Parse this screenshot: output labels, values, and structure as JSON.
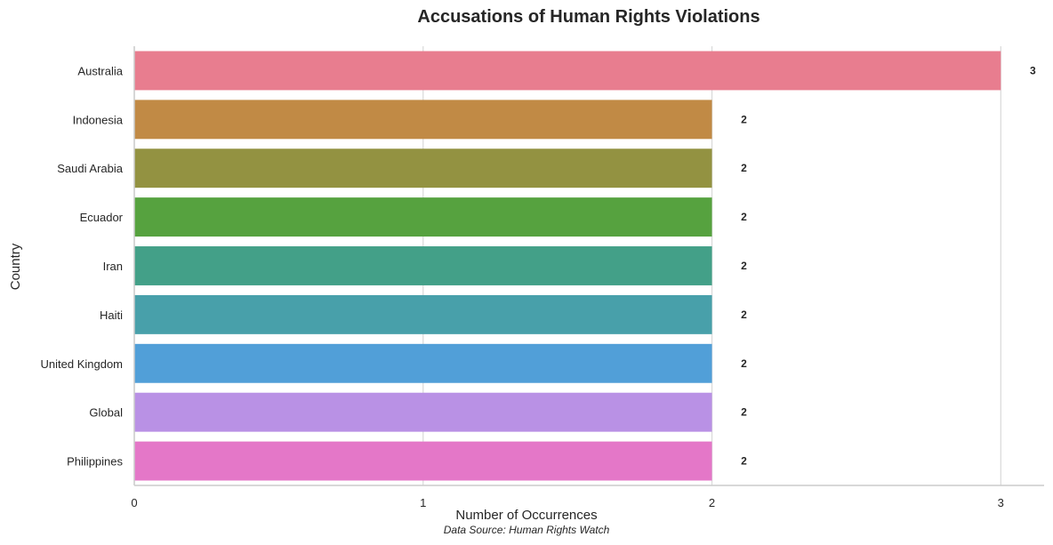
{
  "chart_data": {
    "type": "bar",
    "orientation": "horizontal",
    "title": "Accusations of Human Rights Violations",
    "xlabel": "Number of Occurrences",
    "ylabel": "Country",
    "source_note": "Data Source: Human Rights Watch",
    "xlim": [
      0,
      3.15
    ],
    "xticks": [
      0,
      1,
      2,
      3
    ],
    "grid": "vertical",
    "categories": [
      "Australia",
      "Indonesia",
      "Saudi Arabia",
      "Ecuador",
      "Iran",
      "Haiti",
      "United Kingdom",
      "Global",
      "Philippines"
    ],
    "values": [
      3,
      2,
      2,
      2,
      2,
      2,
      2,
      2,
      2
    ],
    "colors": [
      "#e87d8f",
      "#c18a45",
      "#939241",
      "#56a23f",
      "#43a088",
      "#48a0aa",
      "#519fd8",
      "#b991e5",
      "#e477c8"
    ]
  }
}
